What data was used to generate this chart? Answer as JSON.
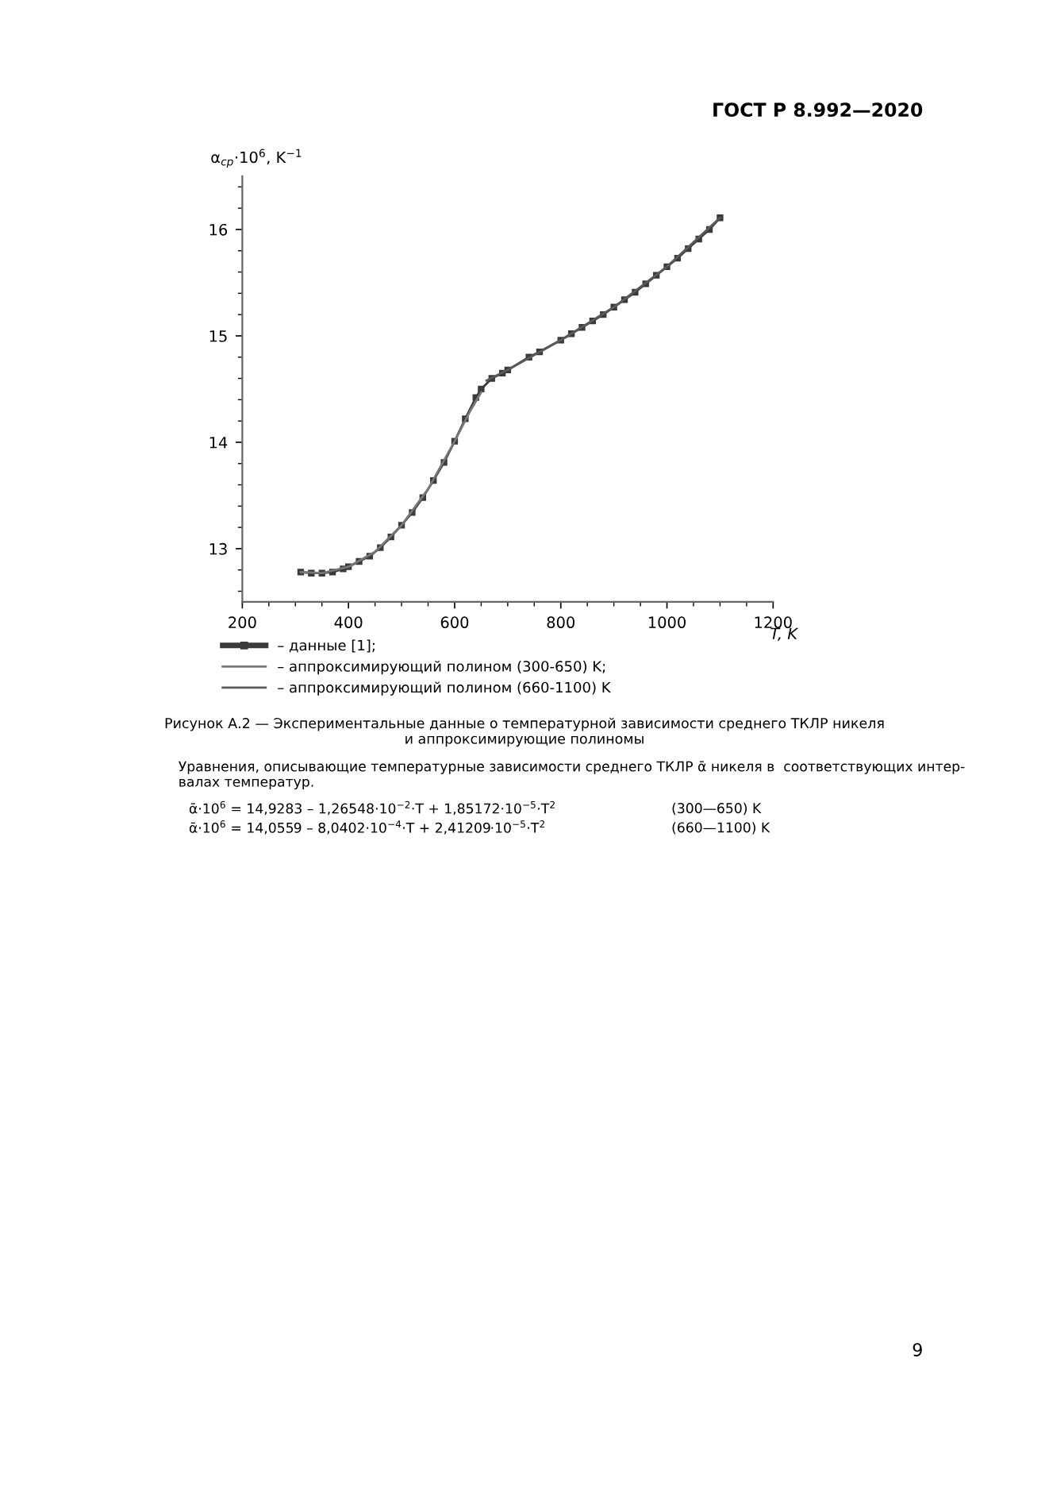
{
  "chart_data": {
    "type": "line",
    "xlabel": "T, K",
    "ylabel": "α$_{ср}$·10$^{6}$, K$^{−1}$",
    "xlim": [
      200,
      1200
    ],
    "ylim": [
      12.5,
      16.5
    ],
    "xticks": [
      200,
      400,
      600,
      800,
      1000,
      1200
    ],
    "yticks": [
      13,
      14,
      15,
      16
    ],
    "legend": "bottom left",
    "grid": false,
    "series": [
      {
        "name": "– данные [1];",
        "color": "#3a3a3a",
        "marker": "square",
        "x": [
          310,
          330,
          350,
          370,
          390,
          400,
          420,
          440,
          460,
          480,
          500,
          520,
          540,
          560,
          580,
          600,
          620,
          640,
          650,
          670,
          690,
          700,
          740,
          760,
          800,
          820,
          840,
          860,
          880,
          900,
          920,
          940,
          960,
          980,
          1000,
          1020,
          1040,
          1060,
          1080,
          1100
        ],
        "values": [
          12.78,
          12.77,
          12.77,
          12.78,
          12.81,
          12.83,
          12.88,
          12.93,
          13.01,
          13.11,
          13.22,
          13.34,
          13.48,
          13.64,
          13.81,
          14.01,
          14.22,
          14.42,
          14.5,
          14.6,
          14.65,
          14.68,
          14.8,
          14.85,
          14.96,
          15.02,
          15.08,
          15.14,
          15.2,
          15.27,
          15.34,
          15.41,
          15.49,
          15.57,
          15.65,
          15.73,
          15.82,
          15.91,
          16.0,
          16.11
        ]
      },
      {
        "name": "– аппроксимирующий полином (300-650) K;",
        "color": "#777777",
        "x": [
          310,
          350,
          400,
          450,
          500,
          550,
          600,
          630,
          650
        ],
        "values": [
          12.78,
          12.77,
          12.83,
          12.97,
          13.22,
          13.56,
          14.01,
          14.3,
          14.47
        ]
      },
      {
        "name": "– аппроксимирующий полином (660-1100) K",
        "color": "#5a5a5a",
        "x": [
          660,
          700,
          800,
          900,
          1000,
          1100
        ],
        "values": [
          14.58,
          14.68,
          14.96,
          15.27,
          15.65,
          16.11
        ]
      }
    ],
    "annotations": [
      "ГОСТ Р 8.992—2020",
      "Рисунок А.2 — Экспериментальные данные о температурной зависимости среднего ТКЛР никеля\nи аппроксимирующие полиномы",
      "Уравнения, описывающие температурные зависимости среднего ТКЛР ᾱ никеля в  соответствующих интер-\nвалах температур.",
      "ᾱ·10$^{6}$ = 14,9283 – 1,26548·10$^{−2}$·T + 1,85172·10$^{−5}$·T$^{2}$",
      "(300—650) K",
      "ᾱ·10$^{6}$ = 14,0559 – 8,0402·10$^{−4}$·T + 2,41209·10$^{−5}$·T$^{2}$",
      "(660—1100) K",
      "9"
    ]
  }
}
